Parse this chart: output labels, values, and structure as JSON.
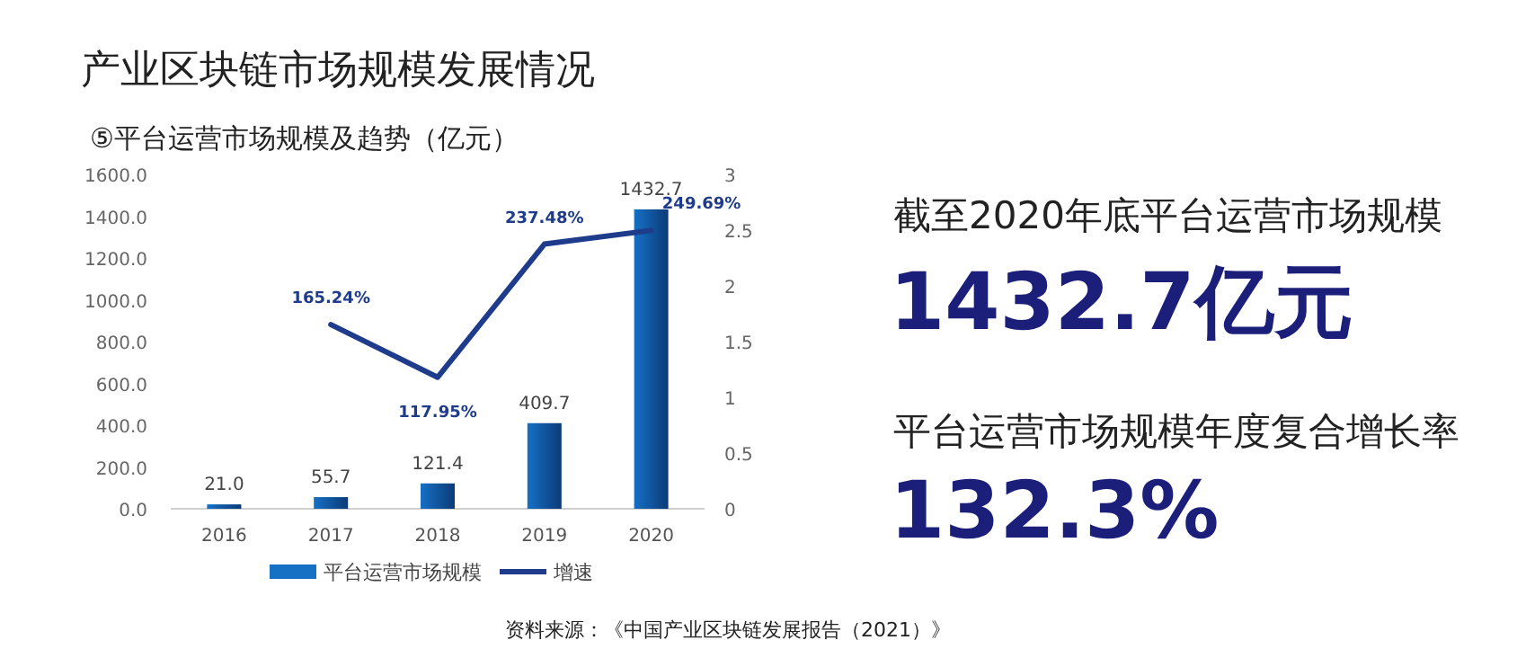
{
  "chart_data": {
    "type": "bar",
    "title": "产业区块链市场规模发展情况",
    "subtitle": "⑤平台运营市场规模及趋势（亿元）",
    "categories": [
      "2016",
      "2017",
      "2018",
      "2019",
      "2020"
    ],
    "series": [
      {
        "name": "平台运营市场规模",
        "color": "#1670c4",
        "values": [
          21.0,
          55.7,
          121.4,
          409.7,
          1432.7
        ],
        "value_labels": [
          "21.0",
          "55.7",
          "121.4",
          "409.7",
          "1432.7"
        ]
      },
      {
        "name": "增速",
        "type": "line",
        "axis": "y2",
        "color": "#1f3b8c",
        "values": [
          null,
          1.6524,
          1.1795,
          2.3748,
          2.4969
        ],
        "value_labels": [
          null,
          "165.24%",
          "117.95%",
          "237.48%",
          "249.69%"
        ]
      }
    ],
    "ylim": [
      0,
      1600
    ],
    "yticks": [
      {
        "value": 0,
        "label": "0.0"
      },
      {
        "value": 200,
        "label": "200.0"
      },
      {
        "value": 400,
        "label": "400.0"
      },
      {
        "value": 600,
        "label": "600.0"
      },
      {
        "value": 800,
        "label": "800.0"
      },
      {
        "value": 1000,
        "label": "1000.0"
      },
      {
        "value": 1200,
        "label": "1200.0"
      },
      {
        "value": 1400,
        "label": "1400.0"
      },
      {
        "value": 1600,
        "label": "1600.0"
      }
    ],
    "y2lim": [
      0,
      3
    ],
    "y2ticks": [
      0,
      0.5,
      1,
      1.5,
      2,
      2.5,
      3
    ],
    "legend": "bottom",
    "grid": false,
    "annotations": [
      "截至2020年底平台运营市场规模",
      "1432.7亿元",
      "平台运营市场规模年度复合增长率",
      "132.3%",
      "资料来源：《中国产业区块链发展报告（2021）》"
    ]
  }
}
